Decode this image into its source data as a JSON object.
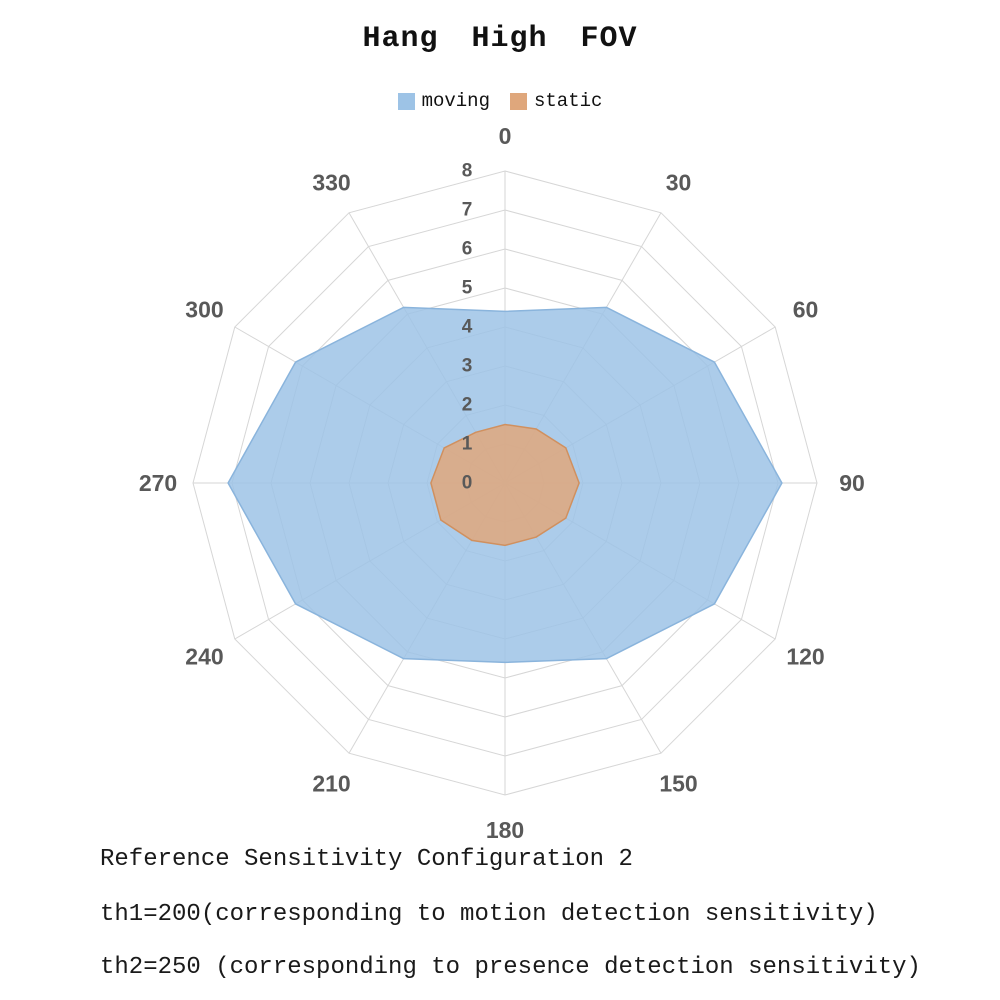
{
  "title": "Hang High FOV",
  "chart_data": {
    "type": "radar",
    "title": "Hang High FOV",
    "categories": [
      "0",
      "30",
      "60",
      "90",
      "120",
      "150",
      "180",
      "210",
      "240",
      "270",
      "300",
      "330"
    ],
    "series": [
      {
        "name": "moving",
        "fill": "#9DC3E6",
        "edge": "#8AB4DC",
        "values": [
          4.4,
          5.2,
          6.2,
          7.1,
          6.2,
          5.2,
          4.6,
          5.2,
          6.2,
          7.1,
          6.2,
          5.2
        ]
      },
      {
        "name": "static",
        "fill": "#DFA77C",
        "edge": "#D0905F",
        "values": [
          1.5,
          1.6,
          1.8,
          1.9,
          1.8,
          1.6,
          1.6,
          1.7,
          1.9,
          1.9,
          1.8,
          1.5
        ]
      }
    ],
    "radial_axis": {
      "min": 0,
      "max": 8,
      "step": 1,
      "tick_labels": [
        "0",
        "1",
        "2",
        "3",
        "4",
        "5",
        "6",
        "7",
        "8"
      ]
    },
    "grid": true,
    "grid_color": "#D6D6D6",
    "legend_position": "top"
  },
  "footer": {
    "line1": "Reference Sensitivity Configuration 2",
    "line2": "th1=200(corresponding to motion detection sensitivity)",
    "line3": "th2=250 (corresponding to presence detection sensitivity)"
  }
}
